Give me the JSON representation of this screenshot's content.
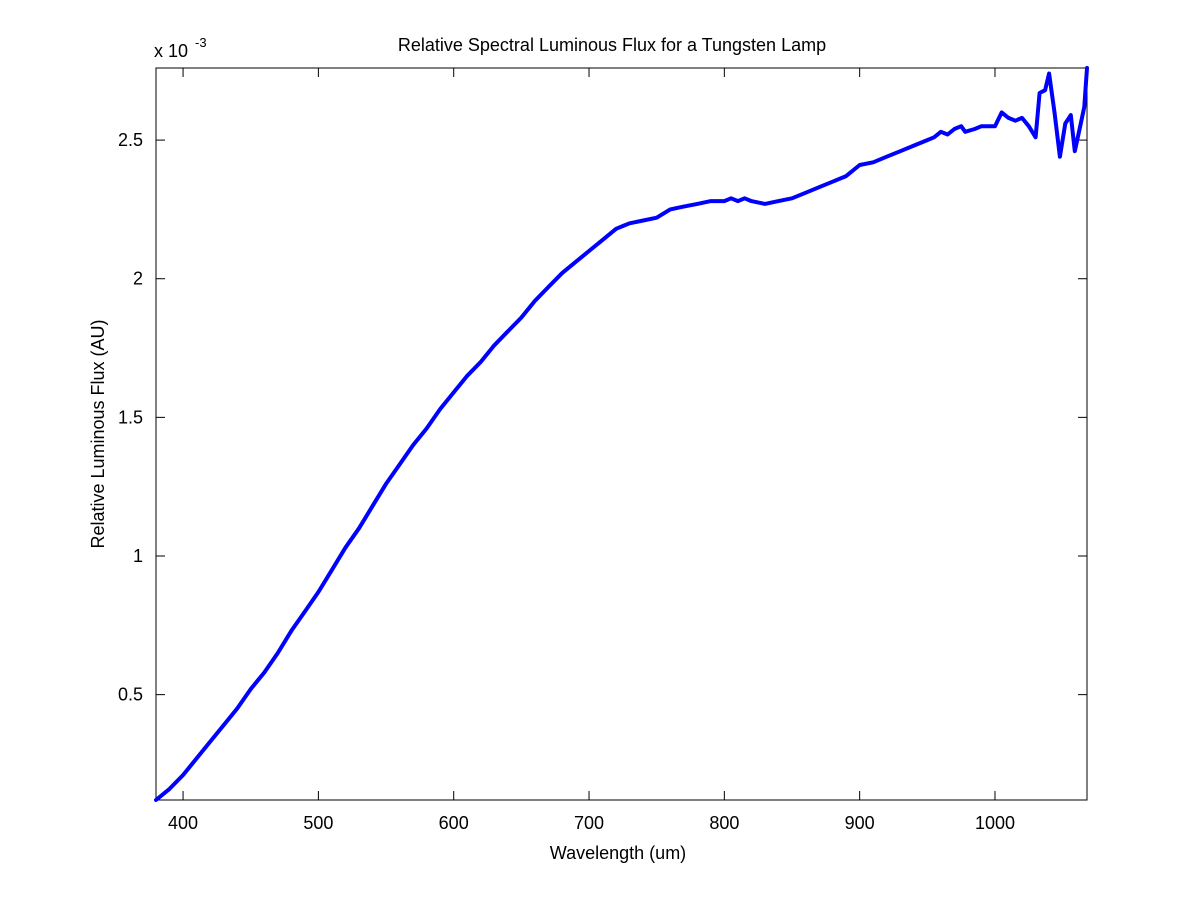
{
  "chart_data": {
    "type": "line",
    "title": "Relative Spectral Luminous Flux for a Tungsten Lamp",
    "xlabel": "Wavelength (um)",
    "ylabel": "Relative Luminous Flux (AU)",
    "y_multiplier_base": "x 10",
    "y_multiplier_exponent": "-3",
    "xlim": [
      380,
      1068
    ],
    "ylim": [
      0.12,
      2.76
    ],
    "xticks": [
      400,
      500,
      600,
      700,
      800,
      900,
      1000
    ],
    "xtick_labels": [
      "400",
      "500",
      "600",
      "700",
      "800",
      "900",
      "1000"
    ],
    "yticks": [
      0.5,
      1,
      1.5,
      2,
      2.5
    ],
    "ytick_labels": [
      "0.5",
      "1",
      "1.5",
      "2",
      "2.5"
    ],
    "grid": false,
    "series": [
      {
        "color": "#0000ff",
        "x": [
          380,
          390,
          400,
          410,
          420,
          430,
          440,
          450,
          460,
          470,
          480,
          490,
          500,
          510,
          520,
          530,
          540,
          550,
          560,
          570,
          580,
          590,
          600,
          610,
          620,
          630,
          640,
          650,
          660,
          670,
          680,
          690,
          700,
          710,
          720,
          725,
          730,
          740,
          750,
          760,
          770,
          780,
          790,
          800,
          805,
          810,
          815,
          820,
          830,
          840,
          850,
          860,
          870,
          880,
          890,
          900,
          910,
          920,
          930,
          940,
          950,
          955,
          960,
          965,
          970,
          975,
          978,
          985,
          990,
          1000,
          1005,
          1010,
          1015,
          1020,
          1025,
          1030,
          1033,
          1037,
          1040,
          1044,
          1048,
          1052,
          1056,
          1059,
          1063,
          1066,
          1068
        ],
        "values": [
          0.12,
          0.16,
          0.21,
          0.27,
          0.33,
          0.39,
          0.45,
          0.52,
          0.58,
          0.65,
          0.73,
          0.8,
          0.87,
          0.95,
          1.03,
          1.1,
          1.18,
          1.26,
          1.33,
          1.4,
          1.46,
          1.53,
          1.59,
          1.65,
          1.7,
          1.76,
          1.81,
          1.86,
          1.92,
          1.97,
          2.02,
          2.06,
          2.1,
          2.14,
          2.18,
          2.19,
          2.2,
          2.21,
          2.22,
          2.25,
          2.26,
          2.27,
          2.28,
          2.28,
          2.29,
          2.28,
          2.29,
          2.28,
          2.27,
          2.28,
          2.29,
          2.31,
          2.33,
          2.35,
          2.37,
          2.41,
          2.42,
          2.44,
          2.46,
          2.48,
          2.5,
          2.51,
          2.53,
          2.52,
          2.54,
          2.55,
          2.53,
          2.54,
          2.55,
          2.55,
          2.6,
          2.58,
          2.57,
          2.58,
          2.55,
          2.51,
          2.67,
          2.68,
          2.74,
          2.6,
          2.44,
          2.56,
          2.59,
          2.46,
          2.55,
          2.62,
          2.76
        ]
      }
    ]
  }
}
